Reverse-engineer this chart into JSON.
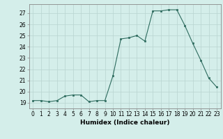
{
  "x": [
    0,
    1,
    2,
    3,
    4,
    5,
    6,
    7,
    8,
    9,
    10,
    11,
    12,
    13,
    14,
    15,
    16,
    17,
    18,
    19,
    20,
    21,
    22,
    23
  ],
  "y": [
    19.2,
    19.2,
    19.1,
    19.2,
    19.6,
    19.7,
    19.7,
    19.1,
    19.2,
    19.2,
    21.4,
    24.7,
    24.8,
    25.0,
    24.5,
    27.2,
    27.2,
    27.3,
    27.3,
    25.9,
    24.3,
    22.8,
    21.2,
    20.4
  ],
  "line_color": "#2d6b5e",
  "marker_color": "#2d6b5e",
  "bg_color": "#d4eeea",
  "grid_color_major": "#b8d4d0",
  "grid_color_minor": "#c8e4e0",
  "xlabel": "Humidex (Indice chaleur)",
  "xlim": [
    -0.5,
    23.5
  ],
  "ylim": [
    18.5,
    27.8
  ],
  "yticks": [
    19,
    20,
    21,
    22,
    23,
    24,
    25,
    26,
    27
  ],
  "xticks": [
    0,
    1,
    2,
    3,
    4,
    5,
    6,
    7,
    8,
    9,
    10,
    11,
    12,
    13,
    14,
    15,
    16,
    17,
    18,
    19,
    20,
    21,
    22,
    23
  ],
  "tick_fontsize": 5.5,
  "xlabel_fontsize": 6.5
}
